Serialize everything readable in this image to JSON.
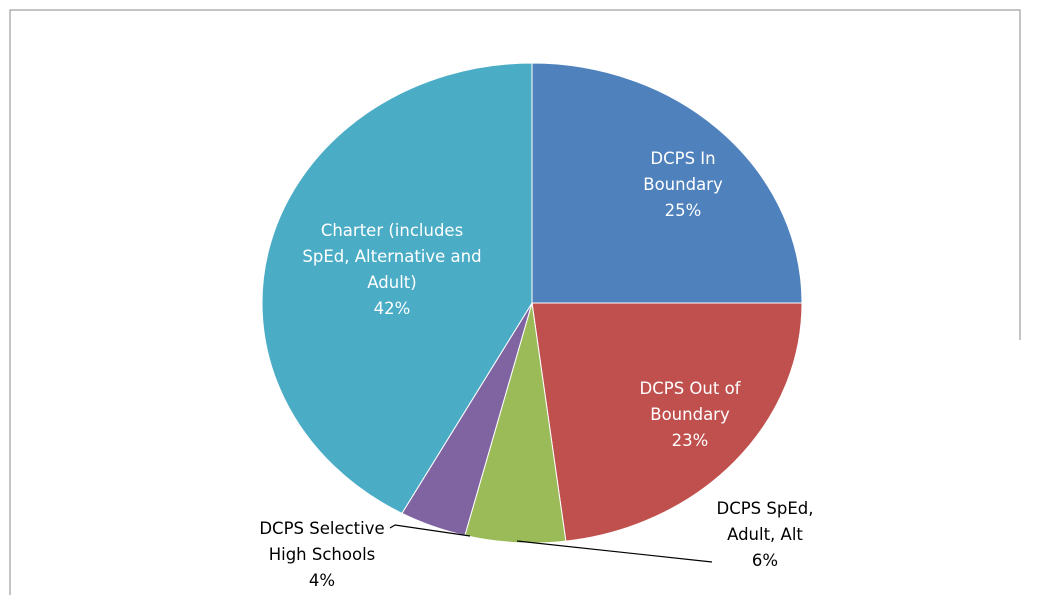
{
  "chart_data": {
    "type": "pie",
    "categories": [
      "DCPS In Boundary",
      "DCPS Out of Boundary",
      "DCPS SpEd, Adult, Alt",
      "DCPS Selective High Schools",
      "Charter (includes SpEd, Alternative and Adult)"
    ],
    "values": [
      25,
      23,
      6,
      4,
      42
    ],
    "value_labels": [
      "25%",
      "23%",
      "6%",
      "4%",
      "42%"
    ],
    "colors": [
      "#4f81bd",
      "#c0504d",
      "#9bbb59",
      "#8064a2",
      "#4bacc6"
    ]
  }
}
